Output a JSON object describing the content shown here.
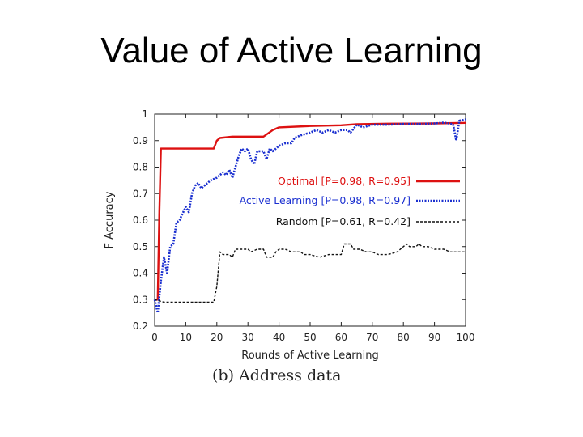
{
  "slide": {
    "title": "Value of Active Learning",
    "caption": "(b) Address data"
  },
  "chart_data": {
    "type": "line",
    "title": "",
    "xlabel": "Rounds of Active Learning",
    "ylabel": "F Accuracy",
    "xlim": [
      0,
      100
    ],
    "ylim": [
      0.2,
      1
    ],
    "x_ticks": [
      0,
      10,
      20,
      30,
      40,
      50,
      60,
      70,
      80,
      90,
      100
    ],
    "y_ticks": [
      0.2,
      0.3,
      0.4,
      0.5,
      0.6,
      0.7,
      0.8,
      0.9,
      1
    ],
    "grid": false,
    "legend_position": "right",
    "series": [
      {
        "name": "Optimal [P=0.98, R=0.95]",
        "color": "#dd1111",
        "style": "solid",
        "points": [
          [
            0,
            0.3
          ],
          [
            1,
            0.3
          ],
          [
            1.5,
            0.63
          ],
          [
            2,
            0.87
          ],
          [
            3,
            0.87
          ],
          [
            10,
            0.87
          ],
          [
            19,
            0.87
          ],
          [
            20,
            0.9
          ],
          [
            21,
            0.91
          ],
          [
            25,
            0.915
          ],
          [
            35,
            0.915
          ],
          [
            38,
            0.94
          ],
          [
            40,
            0.95
          ],
          [
            50,
            0.955
          ],
          [
            60,
            0.958
          ],
          [
            65,
            0.962
          ],
          [
            75,
            0.964
          ],
          [
            90,
            0.965
          ],
          [
            100,
            0.967
          ]
        ]
      },
      {
        "name": "Active Learning [P=0.98, R=0.97]",
        "color": "#1a2fd0",
        "style": "dotted",
        "points": [
          [
            0,
            0.3
          ],
          [
            1,
            0.25
          ],
          [
            2,
            0.37
          ],
          [
            3,
            0.46
          ],
          [
            4,
            0.4
          ],
          [
            5,
            0.5
          ],
          [
            6,
            0.51
          ],
          [
            7,
            0.59
          ],
          [
            8,
            0.6
          ],
          [
            10,
            0.65
          ],
          [
            11,
            0.63
          ],
          [
            12,
            0.7
          ],
          [
            13,
            0.73
          ],
          [
            14,
            0.74
          ],
          [
            15,
            0.72
          ],
          [
            16,
            0.73
          ],
          [
            18,
            0.75
          ],
          [
            20,
            0.76
          ],
          [
            22,
            0.78
          ],
          [
            23,
            0.77
          ],
          [
            24,
            0.79
          ],
          [
            25,
            0.76
          ],
          [
            26,
            0.8
          ],
          [
            27,
            0.84
          ],
          [
            28,
            0.87
          ],
          [
            29,
            0.86
          ],
          [
            30,
            0.87
          ],
          [
            31,
            0.83
          ],
          [
            32,
            0.81
          ],
          [
            33,
            0.86
          ],
          [
            35,
            0.86
          ],
          [
            36,
            0.83
          ],
          [
            37,
            0.87
          ],
          [
            38,
            0.86
          ],
          [
            39,
            0.87
          ],
          [
            40,
            0.88
          ],
          [
            42,
            0.89
          ],
          [
            44,
            0.89
          ],
          [
            45,
            0.91
          ],
          [
            47,
            0.92
          ],
          [
            50,
            0.93
          ],
          [
            52,
            0.94
          ],
          [
            54,
            0.93
          ],
          [
            56,
            0.94
          ],
          [
            58,
            0.93
          ],
          [
            60,
            0.94
          ],
          [
            62,
            0.94
          ],
          [
            63,
            0.93
          ],
          [
            65,
            0.96
          ],
          [
            67,
            0.95
          ],
          [
            70,
            0.96
          ],
          [
            72,
            0.96
          ],
          [
            75,
            0.96
          ],
          [
            80,
            0.963
          ],
          [
            85,
            0.963
          ],
          [
            90,
            0.965
          ],
          [
            93,
            0.968
          ],
          [
            96,
            0.962
          ],
          [
            97,
            0.9
          ],
          [
            98,
            0.975
          ],
          [
            100,
            0.98
          ]
        ]
      },
      {
        "name": "Random [P=0.61, R=0.42]",
        "color": "#111111",
        "style": "dashed",
        "points": [
          [
            0,
            0.3
          ],
          [
            3,
            0.29
          ],
          [
            5,
            0.29
          ],
          [
            10,
            0.29
          ],
          [
            19,
            0.29
          ],
          [
            20,
            0.35
          ],
          [
            21,
            0.48
          ],
          [
            22,
            0.47
          ],
          [
            24,
            0.47
          ],
          [
            25,
            0.46
          ],
          [
            26,
            0.49
          ],
          [
            30,
            0.49
          ],
          [
            31,
            0.48
          ],
          [
            33,
            0.49
          ],
          [
            35,
            0.49
          ],
          [
            36,
            0.46
          ],
          [
            38,
            0.46
          ],
          [
            39,
            0.48
          ],
          [
            40,
            0.49
          ],
          [
            42,
            0.49
          ],
          [
            44,
            0.48
          ],
          [
            47,
            0.48
          ],
          [
            48,
            0.47
          ],
          [
            50,
            0.47
          ],
          [
            53,
            0.46
          ],
          [
            56,
            0.47
          ],
          [
            58,
            0.47
          ],
          [
            60,
            0.47
          ],
          [
            61,
            0.51
          ],
          [
            63,
            0.51
          ],
          [
            64,
            0.49
          ],
          [
            66,
            0.49
          ],
          [
            68,
            0.48
          ],
          [
            70,
            0.48
          ],
          [
            72,
            0.47
          ],
          [
            75,
            0.47
          ],
          [
            78,
            0.48
          ],
          [
            80,
            0.5
          ],
          [
            81,
            0.51
          ],
          [
            82,
            0.5
          ],
          [
            84,
            0.5
          ],
          [
            85,
            0.51
          ],
          [
            86,
            0.5
          ],
          [
            88,
            0.5
          ],
          [
            90,
            0.49
          ],
          [
            93,
            0.49
          ],
          [
            95,
            0.48
          ],
          [
            97,
            0.48
          ],
          [
            100,
            0.48
          ]
        ]
      }
    ]
  }
}
